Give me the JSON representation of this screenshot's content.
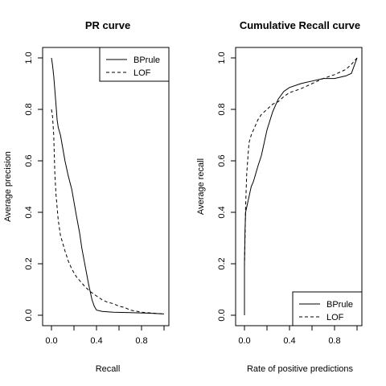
{
  "chart_data": [
    {
      "type": "line",
      "title": "PR curve",
      "xlabel": "Recall",
      "ylabel": "Average precision",
      "xlim": [
        0,
        1
      ],
      "ylim": [
        0,
        1
      ],
      "xticks": [
        0.0,
        0.4,
        0.8
      ],
      "xtick_labels": [
        "0.0",
        "0.4",
        "0.8"
      ],
      "yticks": [
        0.0,
        0.2,
        0.4,
        0.6,
        0.8,
        1.0
      ],
      "ytick_labels": [
        "0.0",
        "0.2",
        "0.4",
        "0.6",
        "0.8",
        "1.0"
      ],
      "legend_position": "top-right",
      "series": [
        {
          "name": "BPrule",
          "style": "solid",
          "x": [
            0.0,
            0.01,
            0.02,
            0.04,
            0.05,
            0.06,
            0.08,
            0.1,
            0.12,
            0.15,
            0.18,
            0.2,
            0.22,
            0.25,
            0.27,
            0.3,
            0.33,
            0.36,
            0.38,
            0.4,
            0.45,
            0.55,
            0.7,
            0.85,
            1.0
          ],
          "y": [
            1.0,
            0.97,
            0.93,
            0.82,
            0.76,
            0.73,
            0.7,
            0.65,
            0.6,
            0.54,
            0.49,
            0.44,
            0.39,
            0.32,
            0.26,
            0.19,
            0.12,
            0.06,
            0.035,
            0.02,
            0.015,
            0.012,
            0.01,
            0.008,
            0.005
          ]
        },
        {
          "name": "LOF",
          "style": "dashed",
          "x": [
            0.0,
            0.01,
            0.02,
            0.03,
            0.04,
            0.06,
            0.08,
            0.1,
            0.12,
            0.15,
            0.18,
            0.22,
            0.26,
            0.3,
            0.35,
            0.4,
            0.45,
            0.5,
            0.55,
            0.6,
            0.65,
            0.7,
            0.8,
            0.9,
            1.0
          ],
          "y": [
            0.8,
            0.77,
            0.7,
            0.55,
            0.47,
            0.37,
            0.31,
            0.28,
            0.25,
            0.21,
            0.18,
            0.15,
            0.13,
            0.11,
            0.09,
            0.075,
            0.06,
            0.05,
            0.045,
            0.035,
            0.03,
            0.02,
            0.012,
            0.008,
            0.005
          ]
        }
      ]
    },
    {
      "type": "line",
      "title": "Cumulative Recall curve",
      "xlabel": "Rate of positive predictions",
      "ylabel": "Average recall",
      "xlim": [
        0,
        1
      ],
      "ylim": [
        0,
        1
      ],
      "xticks": [
        0.0,
        0.4,
        0.8
      ],
      "xtick_labels": [
        "0.0",
        "0.4",
        "0.8"
      ],
      "yticks": [
        0.0,
        0.2,
        0.4,
        0.6,
        0.8,
        1.0
      ],
      "ytick_labels": [
        "0.0",
        "0.2",
        "0.4",
        "0.6",
        "0.8",
        "1.0"
      ],
      "legend_position": "bottom-right",
      "series": [
        {
          "name": "BPrule",
          "style": "solid",
          "x": [
            0.0,
            0.0,
            0.005,
            0.01,
            0.02,
            0.04,
            0.06,
            0.08,
            0.1,
            0.12,
            0.15,
            0.18,
            0.2,
            0.25,
            0.3,
            0.35,
            0.4,
            0.5,
            0.6,
            0.7,
            0.8,
            0.85,
            0.9,
            0.95,
            1.0
          ],
          "y": [
            0.0,
            0.2,
            0.33,
            0.4,
            0.42,
            0.46,
            0.5,
            0.52,
            0.55,
            0.58,
            0.62,
            0.68,
            0.72,
            0.79,
            0.84,
            0.87,
            0.885,
            0.9,
            0.91,
            0.92,
            0.92,
            0.925,
            0.93,
            0.94,
            1.0
          ]
        },
        {
          "name": "LOF",
          "style": "dashed",
          "x": [
            0.0,
            0.005,
            0.01,
            0.02,
            0.04,
            0.06,
            0.08,
            0.1,
            0.12,
            0.15,
            0.2,
            0.25,
            0.3,
            0.35,
            0.4,
            0.5,
            0.6,
            0.7,
            0.8,
            0.9,
            0.95,
            1.0
          ],
          "y": [
            0.19,
            0.3,
            0.42,
            0.55,
            0.67,
            0.7,
            0.72,
            0.74,
            0.76,
            0.78,
            0.8,
            0.82,
            0.83,
            0.85,
            0.865,
            0.88,
            0.9,
            0.92,
            0.935,
            0.955,
            0.975,
            1.0
          ]
        }
      ]
    }
  ]
}
